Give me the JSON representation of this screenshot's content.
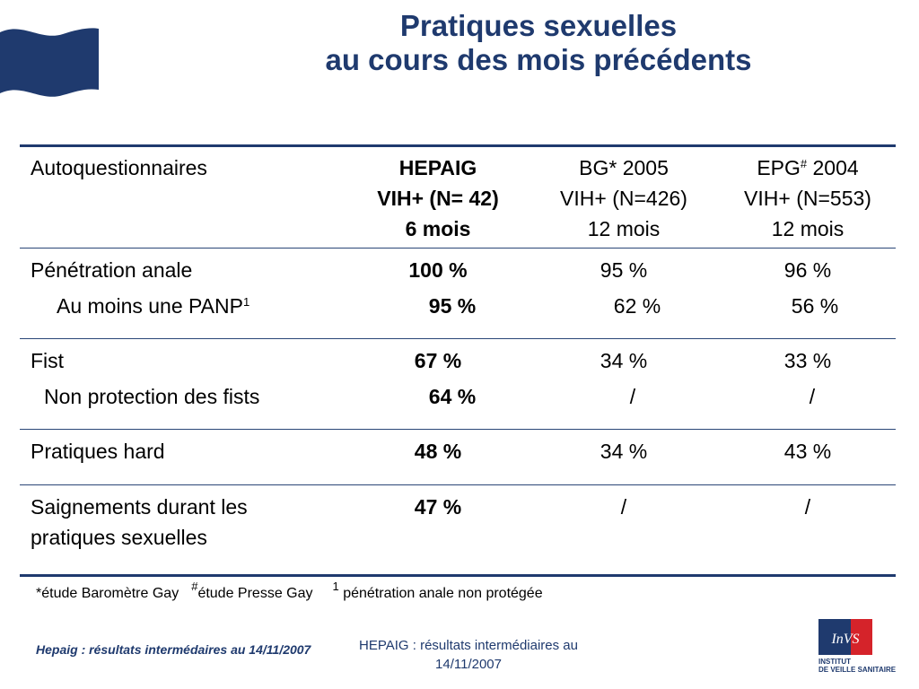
{
  "title": {
    "line1": "Pratiques sexuelles",
    "line2": "au cours des mois précédents"
  },
  "table": {
    "header": {
      "col1": "Autoquestionnaires",
      "col2": [
        "HEPAIG",
        "VIH+ (N= 42)",
        "6 mois"
      ],
      "col3": [
        "BG* 2005",
        "VIH+ (N=426)",
        "12 mois"
      ],
      "col4": {
        "pre": "EPG",
        "sup": "#",
        "post": " 2004",
        "line2": "VIH+ (N=553)",
        "line3": "12 mois"
      }
    },
    "rows": [
      {
        "label": "Pénétration anale",
        "v1": "100 %",
        "v2": "95 %",
        "v3": "96 %"
      },
      {
        "label": "Au moins une PANP",
        "sup": "1",
        "v1": "95 %",
        "v2": "62 %",
        "v3": "56 %"
      },
      {
        "label": "Fist",
        "v1": "67 %",
        "v2": "34 %",
        "v3": "33 %"
      },
      {
        "label": "Non protection des fists",
        "v1": "64 %",
        "v2": "/",
        "v3": "/"
      },
      {
        "label": "Pratiques hard",
        "v1": "48 %",
        "v2": "34 %",
        "v3": "43 %"
      },
      {
        "label_line1": "Saignements durant les",
        "label_line2": "pratiques sexuelles",
        "v1": "47 %",
        "v2": "/",
        "v3": "/"
      }
    ]
  },
  "footnotes": {
    "bg": "*étude Baromètre Gay",
    "epg_sup": "#",
    "epg": "étude Presse Gay",
    "panp_sup": "1",
    "panp": " pénétration anale non protégée"
  },
  "footer": {
    "left": "Hepaig : résultats intermédaires au 14/11/2007",
    "center_line1": "HEPAIG : résultats intermédiaires au",
    "center_line2": "14/11/2007"
  },
  "logo": {
    "mark": "InVS",
    "line1": "INSTITUT",
    "line2": "DE VEILLE SANITAIRE"
  },
  "colors": {
    "primary": "#1f3a6e",
    "logo_red": "#d5232a"
  }
}
